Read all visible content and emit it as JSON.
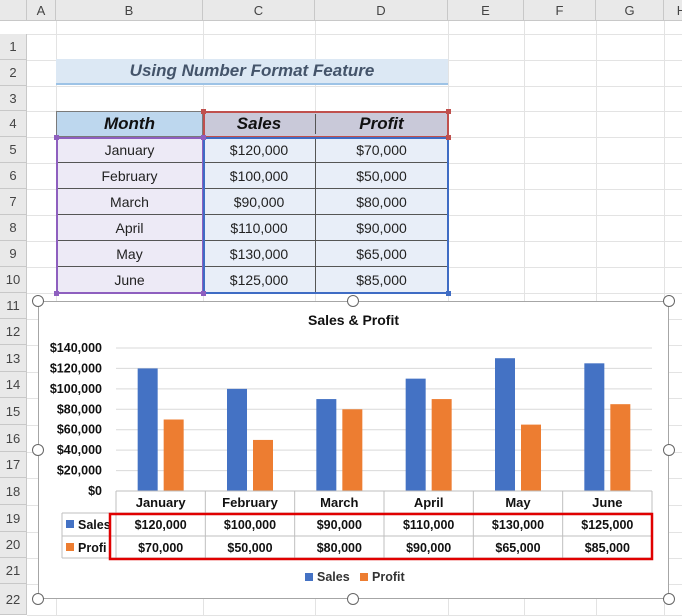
{
  "column_headers": [
    "A",
    "B",
    "C",
    "D",
    "E",
    "F",
    "G",
    "H"
  ],
  "row_headers": [
    "1",
    "2",
    "3",
    "4",
    "5",
    "6",
    "7",
    "8",
    "9",
    "10",
    "11",
    "12",
    "13",
    "14",
    "15",
    "16",
    "17",
    "18",
    "19",
    "20",
    "21",
    "22"
  ],
  "title": "Using Number Format Feature",
  "table": {
    "headers": [
      "Month",
      "Sales",
      "Profit"
    ],
    "rows": [
      [
        "January",
        "$120,000",
        "$70,000"
      ],
      [
        "February",
        "$100,000",
        "$50,000"
      ],
      [
        "March",
        "$90,000",
        "$80,000"
      ],
      [
        "April",
        "$110,000",
        "$90,000"
      ],
      [
        "May",
        "$130,000",
        "$65,000"
      ],
      [
        "June",
        "$125,000",
        "$85,000"
      ]
    ]
  },
  "colors": {
    "sales": "#4472c4",
    "profit": "#ed7d31",
    "highlight": "#e00000"
  },
  "chart_data": {
    "type": "bar",
    "title": "Sales & Profit",
    "categories": [
      "January",
      "February",
      "March",
      "April",
      "May",
      "June"
    ],
    "series": [
      {
        "name": "Sales",
        "values": [
          120000,
          100000,
          90000,
          110000,
          130000,
          125000
        ],
        "labels": [
          "$120,000",
          "$100,000",
          "$90,000",
          "$110,000",
          "$130,000",
          "$125,000"
        ]
      },
      {
        "name": "Profit",
        "values": [
          70000,
          50000,
          80000,
          90000,
          65000,
          85000
        ],
        "labels": [
          "$70,000",
          "$50,000",
          "$80,000",
          "$90,000",
          "$65,000",
          "$85,000"
        ]
      }
    ],
    "ylim": [
      0,
      140000
    ],
    "yticks": [
      "$0",
      "$20,000",
      "$40,000",
      "$60,000",
      "$80,000",
      "$100,000",
      "$120,000",
      "$140,000"
    ],
    "grid": true,
    "legend": "bottom",
    "data_table": true,
    "data_table_series_labels": [
      "Sales",
      "Profi"
    ]
  }
}
